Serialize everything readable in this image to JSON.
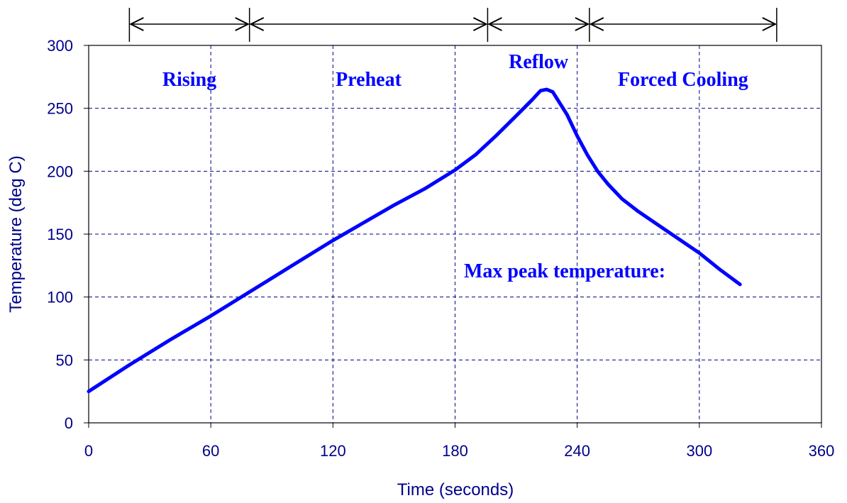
{
  "chart_data": {
    "type": "line",
    "title": "",
    "xlabel": "Time (seconds)",
    "ylabel": "Temperature (deg C)",
    "xlim": [
      0,
      360
    ],
    "ylim": [
      0,
      300
    ],
    "xticks": [
      0,
      60,
      120,
      180,
      240,
      300,
      360
    ],
    "yticks": [
      0,
      50,
      100,
      150,
      200,
      250,
      300
    ],
    "grid": true,
    "series": [
      {
        "x": [
          0,
          20,
          40,
          60,
          80,
          100,
          120,
          135,
          150,
          165,
          180,
          190,
          200,
          210,
          218,
          222,
          225,
          228,
          235,
          240,
          245,
          250,
          255,
          262,
          270,
          280,
          290,
          300,
          310,
          320
        ],
        "y": [
          25,
          46,
          66,
          85,
          105,
          125,
          145,
          159,
          173,
          186,
          201,
          213,
          228,
          244,
          257,
          264,
          265,
          263,
          245,
          228,
          213,
          200,
          190,
          178,
          168,
          157,
          146,
          135,
          122,
          110
        ]
      }
    ],
    "phases": [
      {
        "label": "Rising",
        "start": 20,
        "end": 79
      },
      {
        "label": "Preheat",
        "start": 79,
        "end": 196
      },
      {
        "label": "Reflow",
        "start": 196,
        "end": 246
      },
      {
        "label": "Forced Cooling",
        "start": 246,
        "end": 338
      }
    ],
    "annotations": [
      "Max peak temperature:"
    ],
    "colors": {
      "series": "#0000ff",
      "text": "#00008b",
      "grid": "#000080",
      "axis": "#000000"
    }
  }
}
